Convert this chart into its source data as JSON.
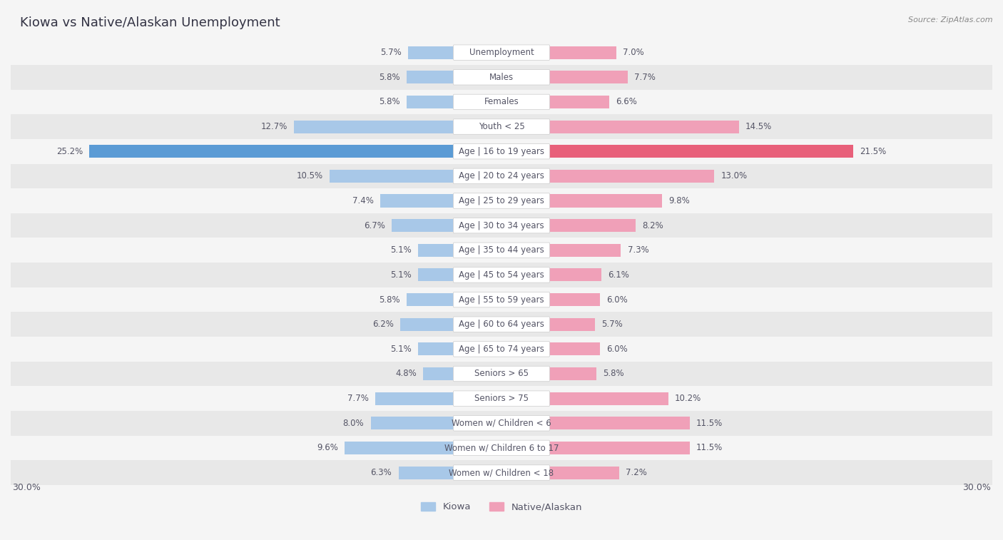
{
  "title": "Kiowa vs Native/Alaskan Unemployment",
  "source": "Source: ZipAtlas.com",
  "categories": [
    "Unemployment",
    "Males",
    "Females",
    "Youth < 25",
    "Age | 16 to 19 years",
    "Age | 20 to 24 years",
    "Age | 25 to 29 years",
    "Age | 30 to 34 years",
    "Age | 35 to 44 years",
    "Age | 45 to 54 years",
    "Age | 55 to 59 years",
    "Age | 60 to 64 years",
    "Age | 65 to 74 years",
    "Seniors > 65",
    "Seniors > 75",
    "Women w/ Children < 6",
    "Women w/ Children 6 to 17",
    "Women w/ Children < 18"
  ],
  "kiowa_values": [
    5.7,
    5.8,
    5.8,
    12.7,
    25.2,
    10.5,
    7.4,
    6.7,
    5.1,
    5.1,
    5.8,
    6.2,
    5.1,
    4.8,
    7.7,
    8.0,
    9.6,
    6.3
  ],
  "native_values": [
    7.0,
    7.7,
    6.6,
    14.5,
    21.5,
    13.0,
    9.8,
    8.2,
    7.3,
    6.1,
    6.0,
    5.7,
    6.0,
    5.8,
    10.2,
    11.5,
    11.5,
    7.2
  ],
  "kiowa_color": "#a8c8e8",
  "native_color": "#f0a0b8",
  "kiowa_highlight_color": "#5b9bd5",
  "native_highlight_color": "#e8607a",
  "bg_light": "#f5f5f5",
  "bg_dark": "#e8e8e8",
  "label_bg": "#ffffff",
  "label_border": "#dddddd",
  "text_color": "#555566",
  "value_color": "#555566",
  "title_color": "#333344",
  "xlim": 30.0,
  "legend_kiowa": "Kiowa",
  "legend_native": "Native/Alaskan",
  "title_fontsize": 13,
  "cat_fontsize": 8.5,
  "value_fontsize": 8.5
}
